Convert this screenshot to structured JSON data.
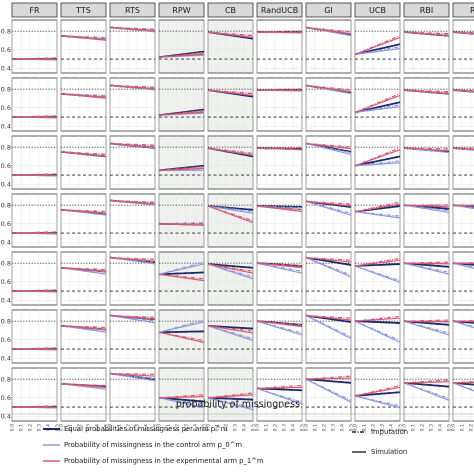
{
  "chart_data": {
    "type": "line",
    "xlabel": "probability of missingness",
    "x": [
      0,
      0.1,
      0.2,
      0.3,
      0.4,
      0.5
    ],
    "x_tick_labels": [
      "0.0",
      "0.1",
      "0.2",
      "0.3",
      "0.4",
      "0.5"
    ],
    "y_tick_labels": [
      "0.4",
      "0.6",
      "0.8"
    ],
    "ylim": [
      0.35,
      0.92
    ],
    "grid": true,
    "reference_lines": [
      0.8,
      0.5
    ],
    "columns": [
      "FR",
      "TTS",
      "RTS",
      "RPW",
      "CB",
      "RandUCB",
      "GI",
      "UCB",
      "RBI",
      "RBI-"
    ],
    "column_display": [
      "FR",
      "TTS",
      "RTS",
      "RPW",
      "CB",
      "RandUCB",
      "GI",
      "UCB",
      "RBI",
      "RB"
    ],
    "rows": 7,
    "shaded_columns": [
      3,
      4
    ],
    "series_styles": [
      {
        "key": "equal",
        "color": "#1f2a6b"
      },
      {
        "key": "control",
        "color": "#8f98d9"
      },
      {
        "key": "experimental",
        "color": "#d75a74"
      }
    ],
    "method_styles": [
      {
        "key": "imputation",
        "dash": "4 1.5 1 1.5"
      },
      {
        "key": "simulation",
        "dash": ""
      }
    ],
    "panels": [
      [
        [
          [
            0.5,
            0.5
          ],
          [
            0.5,
            0.5
          ],
          [
            0.5,
            0.5
          ]
        ],
        [
          [
            0.75,
            0.71
          ],
          [
            0.75,
            0.72
          ],
          [
            0.75,
            0.71
          ]
        ],
        [
          [
            0.84,
            0.8
          ],
          [
            0.84,
            0.8
          ],
          [
            0.84,
            0.81
          ]
        ],
        [
          [
            0.52,
            0.58
          ],
          [
            0.52,
            0.55
          ],
          [
            0.52,
            0.56
          ]
        ],
        [
          [
            0.79,
            0.72
          ],
          [
            0.79,
            0.74
          ],
          [
            0.79,
            0.74
          ]
        ],
        [
          [
            0.79,
            0.79
          ],
          [
            0.79,
            0.79
          ],
          [
            0.79,
            0.79
          ]
        ],
        [
          [
            0.84,
            0.76
          ],
          [
            0.84,
            0.76
          ],
          [
            0.84,
            0.78
          ]
        ],
        [
          [
            0.55,
            0.66
          ],
          [
            0.55,
            0.62
          ],
          [
            0.55,
            0.74
          ]
        ],
        [
          [
            0.79,
            0.75
          ],
          [
            0.79,
            0.76
          ],
          [
            0.79,
            0.76
          ]
        ],
        [
          [
            0.79,
            0.75
          ],
          [
            0.79,
            0.76
          ],
          [
            0.79,
            0.77
          ]
        ]
      ],
      [
        [
          [
            0.5,
            0.5
          ],
          [
            0.5,
            0.5
          ],
          [
            0.5,
            0.5
          ]
        ],
        [
          [
            0.75,
            0.71
          ],
          [
            0.75,
            0.72
          ],
          [
            0.75,
            0.71
          ]
        ],
        [
          [
            0.84,
            0.8
          ],
          [
            0.84,
            0.8
          ],
          [
            0.84,
            0.81
          ]
        ],
        [
          [
            0.52,
            0.58
          ],
          [
            0.52,
            0.55
          ],
          [
            0.52,
            0.56
          ]
        ],
        [
          [
            0.79,
            0.72
          ],
          [
            0.79,
            0.74
          ],
          [
            0.79,
            0.74
          ]
        ],
        [
          [
            0.79,
            0.79
          ],
          [
            0.79,
            0.79
          ],
          [
            0.79,
            0.79
          ]
        ],
        [
          [
            0.84,
            0.76
          ],
          [
            0.84,
            0.76
          ],
          [
            0.84,
            0.78
          ]
        ],
        [
          [
            0.55,
            0.66
          ],
          [
            0.55,
            0.62
          ],
          [
            0.55,
            0.74
          ]
        ],
        [
          [
            0.79,
            0.75
          ],
          [
            0.79,
            0.76
          ],
          [
            0.79,
            0.76
          ]
        ],
        [
          [
            0.79,
            0.75
          ],
          [
            0.79,
            0.76
          ],
          [
            0.79,
            0.77
          ]
        ]
      ],
      [
        [
          [
            0.5,
            0.5
          ],
          [
            0.5,
            0.5
          ],
          [
            0.5,
            0.5
          ]
        ],
        [
          [
            0.75,
            0.7
          ],
          [
            0.75,
            0.71
          ],
          [
            0.75,
            0.71
          ]
        ],
        [
          [
            0.84,
            0.79
          ],
          [
            0.84,
            0.8
          ],
          [
            0.84,
            0.81
          ]
        ],
        [
          [
            0.55,
            0.6
          ],
          [
            0.55,
            0.56
          ],
          [
            0.55,
            0.58
          ]
        ],
        [
          [
            0.79,
            0.7
          ],
          [
            0.79,
            0.72
          ],
          [
            0.79,
            0.72
          ]
        ],
        [
          [
            0.79,
            0.78
          ],
          [
            0.79,
            0.78
          ],
          [
            0.79,
            0.78
          ]
        ],
        [
          [
            0.84,
            0.75
          ],
          [
            0.84,
            0.73
          ],
          [
            0.84,
            0.79
          ]
        ],
        [
          [
            0.6,
            0.7
          ],
          [
            0.6,
            0.64
          ],
          [
            0.6,
            0.78
          ]
        ],
        [
          [
            0.79,
            0.75
          ],
          [
            0.79,
            0.75
          ],
          [
            0.79,
            0.77
          ]
        ],
        [
          [
            0.79,
            0.75
          ],
          [
            0.79,
            0.75
          ],
          [
            0.79,
            0.77
          ]
        ]
      ],
      [
        [
          [
            0.5,
            0.5
          ],
          [
            0.5,
            0.5
          ],
          [
            0.5,
            0.5
          ]
        ],
        [
          [
            0.75,
            0.71
          ],
          [
            0.75,
            0.7
          ],
          [
            0.75,
            0.72
          ]
        ],
        [
          [
            0.85,
            0.81
          ],
          [
            0.85,
            0.81
          ],
          [
            0.85,
            0.82
          ]
        ],
        [
          [
            0.6,
            0.59
          ],
          [
            0.6,
            0.6
          ],
          [
            0.6,
            0.59
          ]
        ],
        [
          [
            0.79,
            0.75
          ],
          [
            0.79,
            0.72
          ],
          [
            0.79,
            0.62
          ]
        ],
        [
          [
            0.79,
            0.78
          ],
          [
            0.79,
            0.76
          ],
          [
            0.79,
            0.74
          ]
        ],
        [
          [
            0.84,
            0.78
          ],
          [
            0.84,
            0.7
          ],
          [
            0.84,
            0.8
          ]
        ],
        [
          [
            0.73,
            0.79
          ],
          [
            0.73,
            0.67
          ],
          [
            0.73,
            0.82
          ]
        ],
        [
          [
            0.8,
            0.76
          ],
          [
            0.8,
            0.73
          ],
          [
            0.8,
            0.79
          ]
        ],
        [
          [
            0.8,
            0.76
          ],
          [
            0.8,
            0.73
          ],
          [
            0.8,
            0.79
          ]
        ]
      ],
      [
        [
          [
            0.5,
            0.5
          ],
          [
            0.5,
            0.5
          ],
          [
            0.5,
            0.5
          ]
        ],
        [
          [
            0.75,
            0.71
          ],
          [
            0.75,
            0.69
          ],
          [
            0.75,
            0.72
          ]
        ],
        [
          [
            0.86,
            0.81
          ],
          [
            0.86,
            0.8
          ],
          [
            0.86,
            0.83
          ]
        ],
        [
          [
            0.68,
            0.7
          ],
          [
            0.68,
            0.8
          ],
          [
            0.68,
            0.62
          ]
        ],
        [
          [
            0.79,
            0.75
          ],
          [
            0.79,
            0.64
          ],
          [
            0.79,
            0.7
          ]
        ],
        [
          [
            0.8,
            0.77
          ],
          [
            0.8,
            0.7
          ],
          [
            0.8,
            0.76
          ]
        ],
        [
          [
            0.86,
            0.78
          ],
          [
            0.86,
            0.66
          ],
          [
            0.86,
            0.82
          ]
        ],
        [
          [
            0.77,
            0.79
          ],
          [
            0.77,
            0.6
          ],
          [
            0.77,
            0.84
          ]
        ],
        [
          [
            0.8,
            0.76
          ],
          [
            0.8,
            0.69
          ],
          [
            0.8,
            0.8
          ]
        ],
        [
          [
            0.8,
            0.76
          ],
          [
            0.8,
            0.69
          ],
          [
            0.8,
            0.8
          ]
        ]
      ],
      [
        [
          [
            0.5,
            0.5
          ],
          [
            0.5,
            0.5
          ],
          [
            0.5,
            0.5
          ]
        ],
        [
          [
            0.75,
            0.71
          ],
          [
            0.75,
            0.69
          ],
          [
            0.75,
            0.72
          ]
        ],
        [
          [
            0.86,
            0.82
          ],
          [
            0.86,
            0.79
          ],
          [
            0.86,
            0.83
          ]
        ],
        [
          [
            0.68,
            0.69
          ],
          [
            0.68,
            0.8
          ],
          [
            0.68,
            0.58
          ]
        ],
        [
          [
            0.75,
            0.72
          ],
          [
            0.75,
            0.6
          ],
          [
            0.75,
            0.68
          ]
        ],
        [
          [
            0.8,
            0.76
          ],
          [
            0.8,
            0.66
          ],
          [
            0.8,
            0.75
          ]
        ],
        [
          [
            0.86,
            0.79
          ],
          [
            0.86,
            0.62
          ],
          [
            0.86,
            0.82
          ]
        ],
        [
          [
            0.8,
            0.78
          ],
          [
            0.8,
            0.58
          ],
          [
            0.8,
            0.84
          ]
        ],
        [
          [
            0.8,
            0.76
          ],
          [
            0.8,
            0.66
          ],
          [
            0.8,
            0.8
          ]
        ],
        [
          [
            0.8,
            0.76
          ],
          [
            0.8,
            0.66
          ],
          [
            0.8,
            0.8
          ]
        ]
      ],
      [
        [
          [
            0.5,
            0.5
          ],
          [
            0.5,
            0.5
          ],
          [
            0.5,
            0.5
          ]
        ],
        [
          [
            0.75,
            0.72
          ],
          [
            0.75,
            0.7
          ],
          [
            0.75,
            0.72
          ]
        ],
        [
          [
            0.86,
            0.8
          ],
          [
            0.86,
            0.79
          ],
          [
            0.86,
            0.84
          ]
        ],
        [
          [
            0.6,
            0.56
          ],
          [
            0.6,
            0.5
          ],
          [
            0.6,
            0.62
          ]
        ],
        [
          [
            0.6,
            0.58
          ],
          [
            0.6,
            0.48
          ],
          [
            0.6,
            0.64
          ]
        ],
        [
          [
            0.7,
            0.68
          ],
          [
            0.7,
            0.54
          ],
          [
            0.7,
            0.72
          ]
        ],
        [
          [
            0.8,
            0.76
          ],
          [
            0.8,
            0.56
          ],
          [
            0.8,
            0.82
          ]
        ],
        [
          [
            0.62,
            0.66
          ],
          [
            0.62,
            0.5
          ],
          [
            0.62,
            0.72
          ]
        ],
        [
          [
            0.76,
            0.72
          ],
          [
            0.76,
            0.58
          ],
          [
            0.76,
            0.78
          ]
        ],
        [
          [
            0.76,
            0.72
          ],
          [
            0.76,
            0.58
          ],
          [
            0.76,
            0.78
          ]
        ]
      ]
    ],
    "legend": {
      "colors": [
        "Equal probabilities of missingness per arm p^m",
        "Probability of missingness in the control arm p_0^m",
        "Probability of missingness in the experimental arm p_1^m"
      ],
      "methods": [
        "Imputation",
        "Simulation"
      ]
    }
  }
}
